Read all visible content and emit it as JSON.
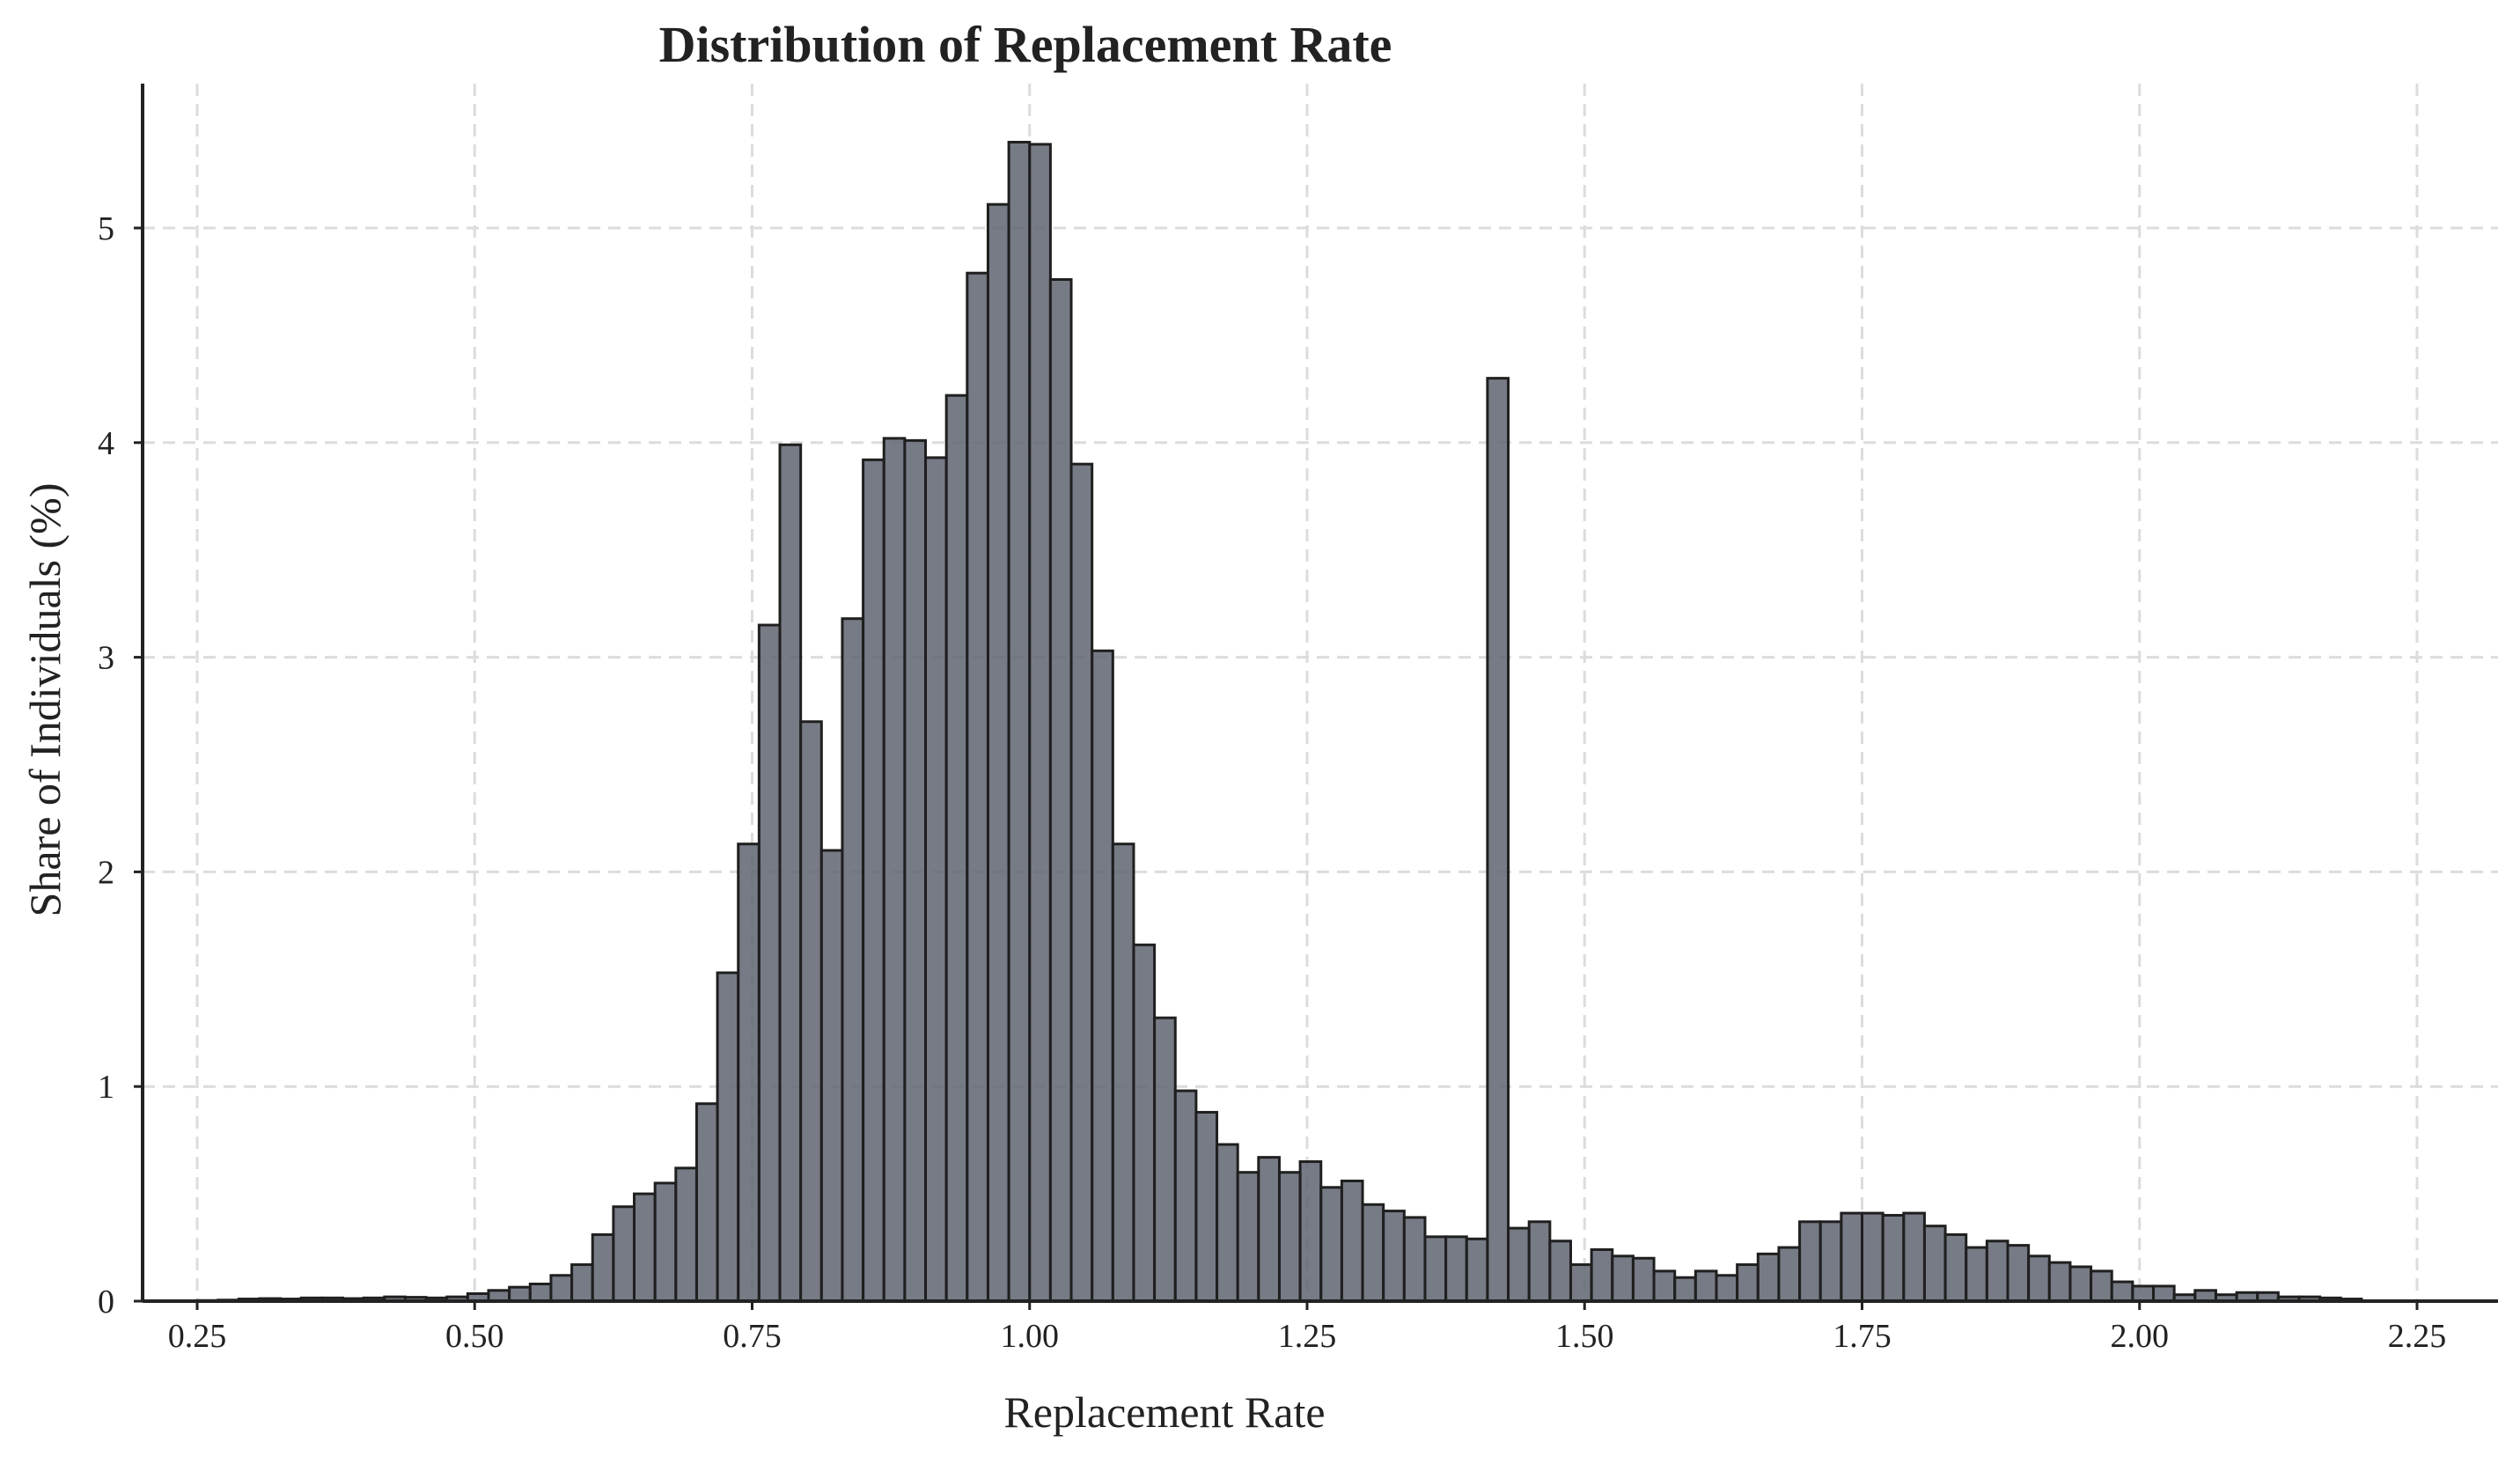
{
  "chart_data": {
    "type": "bar",
    "title": "Distribution of Replacement Rate",
    "xlabel": "Replacement Rate",
    "ylabel": "Share of Individuals (%)",
    "xlim": [
      0.21,
      2.26
    ],
    "ylim": [
      0,
      5.65
    ],
    "xticks": [
      0.25,
      0.5,
      0.75,
      1.0,
      1.25,
      1.5,
      1.75,
      2.0,
      2.25
    ],
    "xtick_labels": [
      "0.25",
      "0.50",
      "0.75",
      "1.00",
      "1.25",
      "1.50",
      "1.75",
      "2.00",
      "2.25"
    ],
    "yticks": [
      0,
      1,
      2,
      3,
      4,
      5
    ],
    "ytick_labels": [
      "0",
      "1",
      "2",
      "3",
      "4",
      "5"
    ],
    "grid": true,
    "bar_color": "#5f6470",
    "edge_color": "#1f1f1f",
    "bin_start": 0.25,
    "bin_width": 0.01875,
    "values": [
      0.003,
      0.005,
      0.01,
      0.012,
      0.01,
      0.015,
      0.015,
      0.012,
      0.015,
      0.02,
      0.018,
      0.015,
      0.02,
      0.035,
      0.05,
      0.065,
      0.08,
      0.12,
      0.17,
      0.31,
      0.44,
      0.5,
      0.55,
      0.62,
      0.92,
      1.53,
      2.13,
      3.15,
      3.99,
      2.7,
      2.1,
      3.18,
      3.92,
      4.02,
      4.01,
      3.93,
      4.22,
      4.79,
      5.11,
      5.4,
      5.39,
      4.76,
      3.9,
      3.03,
      2.13,
      1.66,
      1.32,
      0.98,
      0.88,
      0.73,
      0.6,
      0.67,
      0.6,
      0.65,
      0.53,
      0.56,
      0.45,
      0.42,
      0.39,
      0.3,
      0.3,
      0.29,
      4.3,
      0.34,
      0.37,
      0.28,
      0.17,
      0.24,
      0.21,
      0.2,
      0.14,
      0.11,
      0.14,
      0.12,
      0.17,
      0.22,
      0.25,
      0.37,
      0.37,
      0.41,
      0.41,
      0.4,
      0.41,
      0.35,
      0.31,
      0.25,
      0.28,
      0.26,
      0.21,
      0.18,
      0.16,
      0.14,
      0.09,
      0.07,
      0.07,
      0.03,
      0.05,
      0.03,
      0.04,
      0.04,
      0.02,
      0.02,
      0.015,
      0.01
    ]
  }
}
